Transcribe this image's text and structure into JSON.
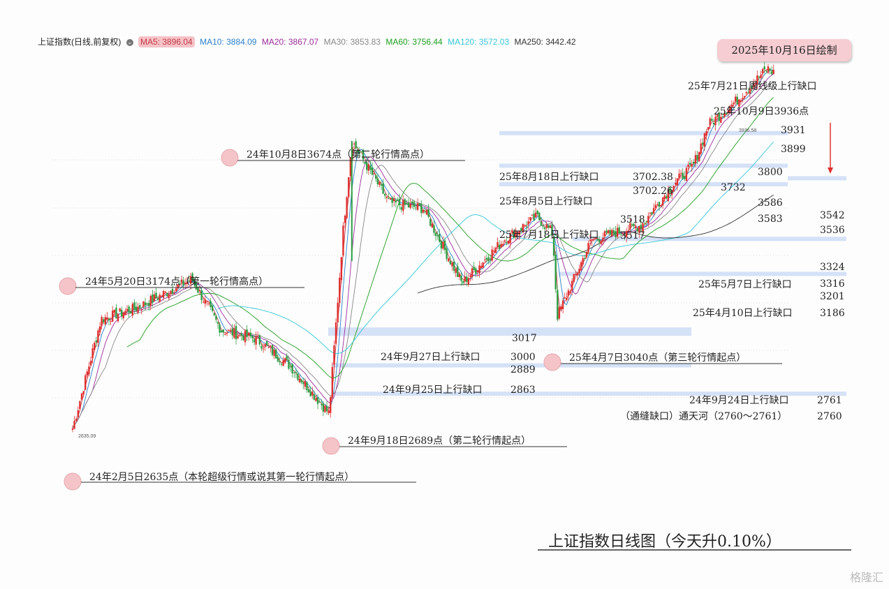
{
  "legend": {
    "name": "上证指数(日线,前复权)",
    "ma5": "MA5: 3896.04",
    "ma10": "MA10: 3884.09",
    "ma20": "MA20: 3867.07",
    "ma30": "MA30: 3853.83",
    "ma60": "MA60: 3756.44",
    "ma120": "MA120: 3572.03",
    "ma250": "MA250: 3442.42"
  },
  "date_box": "2025年10月16日绘制",
  "watermark": "格隆汇",
  "colors": {
    "ma5": "#c23a47",
    "ma10": "#2a80c8",
    "ma20": "#9b2d9b",
    "ma30": "#888888",
    "ma60": "#1f9e1f",
    "ma120": "#36c6d8",
    "ma250": "#333333",
    "up": "#e03030",
    "down": "#2f9e44",
    "gap_band": "#c9d9f5",
    "marker": "#f4c4c8"
  },
  "chart_data": {
    "type": "candlestick",
    "title": "上证指数日线图（今天升0.10%）",
    "key_levels": [
      {
        "date": "2024-02-05",
        "value": 2635
      },
      {
        "date": "2024-05-20",
        "value": 3174
      },
      {
        "date": "2024-09-18",
        "value": 2689
      },
      {
        "date": "2024-10-08",
        "value": 3674
      },
      {
        "date": "2025-04-07",
        "value": 3040
      },
      {
        "date": "2025-10-09",
        "value": 3936
      }
    ],
    "series_points": [
      [
        "2024-02-05",
        2635
      ],
      [
        "2024-03-01",
        3030
      ],
      [
        "2024-04-01",
        3070
      ],
      [
        "2024-05-20",
        3174
      ],
      [
        "2024-06-15",
        2990
      ],
      [
        "2024-07-15",
        2960
      ],
      [
        "2024-08-15",
        2860
      ],
      [
        "2024-09-18",
        2689
      ],
      [
        "2024-09-30",
        3336
      ],
      [
        "2024-10-08",
        3674
      ],
      [
        "2024-11-10",
        3450
      ],
      [
        "2024-12-10",
        3430
      ],
      [
        "2025-01-13",
        3160
      ],
      [
        "2025-02-20",
        3320
      ],
      [
        "2025-03-20",
        3400
      ],
      [
        "2025-04-03",
        3340
      ],
      [
        "2025-04-07",
        3040
      ],
      [
        "2025-05-07",
        3316
      ],
      [
        "2025-06-20",
        3370
      ],
      [
        "2025-07-18",
        3517
      ],
      [
        "2025-08-05",
        3586
      ],
      [
        "2025-08-18",
        3732
      ],
      [
        "2025-09-10",
        3812
      ],
      [
        "2025-10-09",
        3936
      ],
      [
        "2025-10-16",
        3916
      ]
    ],
    "annotations": {
      "low_2024_02": "2635.09",
      "high_2025_10": "3936.58",
      "a1": "24年10月8日3674点（第二轮行情高点）",
      "a2": "24年5月20日3174点（第一轮行情高点）",
      "a3": "24年9月18日2689点（第二轮行情起点）",
      "a4": "24年2月5日2635点（本轮超级行情或说其第一轮行情起点）",
      "a5": "25年4月7日3040点（第三轮行情起点）",
      "g1": "25年7月21日周线级上行缺口",
      "g2": "25年10月9日3936点",
      "g3": "25年8月18日上行缺口",
      "g4": "25年8月5日上行缺口",
      "g5": "25年7月18日上行缺口",
      "g6": "25年5月7日上行缺口",
      "g7": "25年4月10日上行缺口",
      "g8": "24年9月27日上行缺口",
      "g9": "24年9月25日上行缺口",
      "g10": "24年9月24日上行缺口",
      "g11": "（通缝缺口）通天河（2760～2761）"
    },
    "level_labels": {
      "l3931": "3931",
      "l3899": "3899",
      "l3800": "3800",
      "l3732": "3732",
      "l3702a": "3702.38",
      "l3702b": "3702.26",
      "l3586": "3586",
      "l3583": "3583",
      "l3542": "3542",
      "l3536": "3536",
      "l3518": "3518",
      "l3517": "3517",
      "l3324": "3324",
      "l3316": "3316",
      "l3201": "3201",
      "l3186": "3186",
      "l3017": "3017",
      "l3000": "3000",
      "l2889": "2889",
      "l2863": "2863",
      "l2761": "2761",
      "l2760": "2760"
    },
    "gap_bands": [
      {
        "label": "25年8月18日上行缺口",
        "from": 3702.26,
        "to": 3702.38
      },
      {
        "label": "25年8月5日上行缺口",
        "from": 3586,
        "to": 3583
      },
      {
        "label": "25年7月18日上行缺口",
        "from": 3517,
        "to": 3518
      },
      {
        "label": "",
        "from": 3536,
        "to": 3542
      },
      {
        "label": "25年5月7日上行缺口",
        "from": 3316,
        "to": 3324
      },
      {
        "label": "25年4月10日上行缺口",
        "from": 3186,
        "to": 3201
      },
      {
        "label": "24年9月27日上行缺口",
        "from": 2889,
        "to": 3000
      },
      {
        "label": "24年9月25日上行缺口",
        "from": 2863,
        "to": 2863
      },
      {
        "label": "24年9月24日上行缺口",
        "from": 2760,
        "to": 2761
      }
    ]
  }
}
